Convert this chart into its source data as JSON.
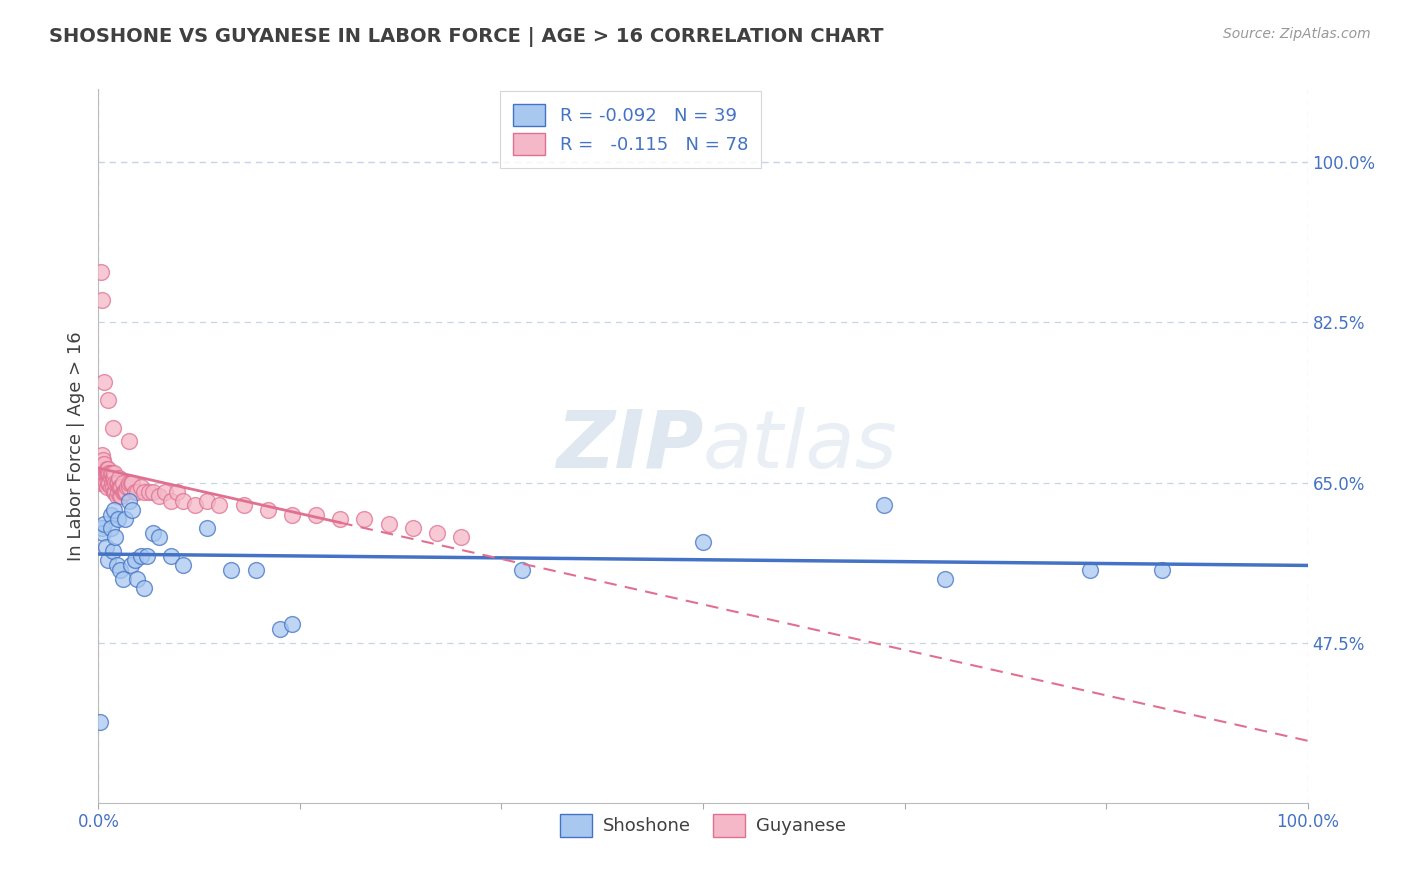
{
  "title": "SHOSHONE VS GUYANESE IN LABOR FORCE | AGE > 16 CORRELATION CHART",
  "source_text": "Source: ZipAtlas.com",
  "ylabel": "In Labor Force | Age > 16",
  "watermark": "ZIPatlas",
  "legend_r1": "R = -0.092",
  "legend_n1": "N = 39",
  "legend_r2": "R =  -0.115",
  "legend_n2": "N = 78",
  "label1": "Shoshone",
  "label2": "Guyanese",
  "color1": "#a8c8f0",
  "color2": "#f4b8c8",
  "line_color1": "#4472c4",
  "line_color2": "#e07090",
  "background_color": "#ffffff",
  "grid_color": "#c8d4e8",
  "axis_color": "#4472c4",
  "title_color": "#404040",
  "xlim": [
    0.0,
    1.0
  ],
  "ylim": [
    0.3,
    1.08
  ],
  "right_ytick_labels": [
    "47.5%",
    "65.0%",
    "82.5%",
    "100.0%"
  ],
  "right_ytick_positions": [
    0.475,
    0.65,
    0.825,
    1.0
  ],
  "shoshone_x": [
    0.001,
    0.003,
    0.004,
    0.005,
    0.006,
    0.008,
    0.01,
    0.01,
    0.012,
    0.013,
    0.014,
    0.015,
    0.016,
    0.018,
    0.02,
    0.022,
    0.025,
    0.027,
    0.028,
    0.03,
    0.032,
    0.035,
    0.038,
    0.04,
    0.045,
    0.05,
    0.06,
    0.07,
    0.09,
    0.11,
    0.13,
    0.15,
    0.16,
    0.35,
    0.5,
    0.65,
    0.7,
    0.82,
    0.88
  ],
  "shoshone_y": [
    0.388,
    0.6,
    0.595,
    0.605,
    0.58,
    0.565,
    0.615,
    0.6,
    0.575,
    0.62,
    0.59,
    0.56,
    0.61,
    0.555,
    0.545,
    0.61,
    0.63,
    0.56,
    0.62,
    0.565,
    0.545,
    0.57,
    0.535,
    0.57,
    0.595,
    0.59,
    0.57,
    0.56,
    0.6,
    0.555,
    0.555,
    0.49,
    0.495,
    0.555,
    0.585,
    0.625,
    0.545,
    0.555,
    0.555
  ],
  "guyanese_x": [
    0.001,
    0.002,
    0.002,
    0.003,
    0.003,
    0.003,
    0.004,
    0.004,
    0.005,
    0.005,
    0.005,
    0.006,
    0.006,
    0.007,
    0.007,
    0.007,
    0.008,
    0.008,
    0.008,
    0.009,
    0.009,
    0.01,
    0.01,
    0.01,
    0.011,
    0.011,
    0.012,
    0.012,
    0.013,
    0.013,
    0.013,
    0.014,
    0.014,
    0.015,
    0.015,
    0.016,
    0.016,
    0.017,
    0.017,
    0.018,
    0.018,
    0.019,
    0.019,
    0.02,
    0.02,
    0.021,
    0.022,
    0.023,
    0.024,
    0.025,
    0.025,
    0.027,
    0.028,
    0.03,
    0.032,
    0.035,
    0.038,
    0.042,
    0.045,
    0.05,
    0.055,
    0.06,
    0.065,
    0.07,
    0.08,
    0.09,
    0.1,
    0.12,
    0.14,
    0.16,
    0.18,
    0.2,
    0.22,
    0.24,
    0.26,
    0.28,
    0.3
  ],
  "guyanese_y": [
    0.65,
    0.66,
    0.665,
    0.66,
    0.67,
    0.68,
    0.665,
    0.675,
    0.65,
    0.66,
    0.67,
    0.65,
    0.66,
    0.645,
    0.66,
    0.665,
    0.65,
    0.66,
    0.665,
    0.65,
    0.66,
    0.645,
    0.655,
    0.66,
    0.65,
    0.66,
    0.645,
    0.655,
    0.64,
    0.655,
    0.66,
    0.64,
    0.65,
    0.635,
    0.65,
    0.64,
    0.65,
    0.645,
    0.655,
    0.635,
    0.645,
    0.635,
    0.645,
    0.64,
    0.65,
    0.64,
    0.64,
    0.64,
    0.645,
    0.645,
    0.65,
    0.65,
    0.65,
    0.64,
    0.64,
    0.645,
    0.64,
    0.64,
    0.64,
    0.635,
    0.64,
    0.63,
    0.64,
    0.63,
    0.625,
    0.63,
    0.625,
    0.625,
    0.62,
    0.615,
    0.615,
    0.61,
    0.61,
    0.605,
    0.6,
    0.595,
    0.59
  ],
  "guyanese_outliers_x": [
    0.002,
    0.003,
    0.005,
    0.008,
    0.012,
    0.025
  ],
  "guyanese_outliers_y": [
    0.88,
    0.85,
    0.76,
    0.74,
    0.71,
    0.695
  ]
}
